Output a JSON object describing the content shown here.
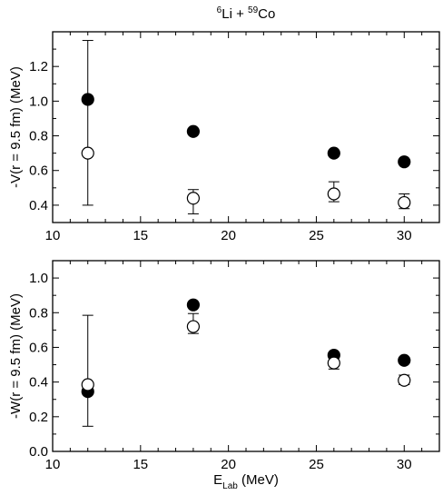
{
  "chart_data": [
    {
      "type": "scatter",
      "title": {
        "pre": "6",
        "a": "Li + ",
        "sup": "59",
        "b": "Co"
      },
      "ylabel": "-V(r = 9.5 fm) (MeV)",
      "xlabel": "",
      "xlim": [
        10,
        32
      ],
      "ylim": [
        0.3,
        1.4
      ],
      "xticks": [
        10,
        15,
        20,
        25,
        30
      ],
      "yticks": [
        0.4,
        0.6,
        0.8,
        1.0,
        1.2
      ],
      "xtick_labels": [
        "10",
        "15",
        "20",
        "25",
        "30"
      ],
      "ytick_labels": [
        "0.4",
        "0.6",
        "0.8",
        "1.0",
        "1.2"
      ],
      "series": [
        {
          "marker": "filled-circle",
          "x": [
            12,
            18,
            26,
            30
          ],
          "y": [
            1.01,
            0.825,
            0.7,
            0.65
          ],
          "err": [
            null,
            null,
            null,
            null
          ]
        },
        {
          "marker": "open-circle",
          "x": [
            12,
            18,
            26,
            30
          ],
          "y": [
            0.7,
            0.44,
            0.465,
            0.415
          ],
          "err": [
            [
              0.4,
              1.35
            ],
            [
              0.35,
              0.49
            ],
            [
              0.42,
              0.535
            ],
            [
              0.38,
              0.465
            ]
          ]
        }
      ]
    },
    {
      "type": "scatter",
      "ylabel": "-W(r = 9.5 fm) (MeV)",
      "xlabel": {
        "pre": "E",
        "sub": "Lab",
        "post": " (MeV)"
      },
      "xlim": [
        10,
        32
      ],
      "ylim": [
        0.0,
        1.1
      ],
      "xticks": [
        10,
        15,
        20,
        25,
        30
      ],
      "yticks": [
        0.0,
        0.2,
        0.4,
        0.6,
        0.8,
        1.0
      ],
      "xtick_labels": [
        "10",
        "15",
        "20",
        "25",
        "30"
      ],
      "ytick_labels": [
        "0.0",
        "0.2",
        "0.4",
        "0.6",
        "0.8",
        "1.0"
      ],
      "series": [
        {
          "marker": "filled-circle",
          "x": [
            12,
            18,
            26,
            30
          ],
          "y": [
            0.345,
            0.845,
            0.555,
            0.525
          ],
          "err": [
            null,
            null,
            null,
            null
          ]
        },
        {
          "marker": "open-circle",
          "x": [
            12,
            18,
            26,
            30
          ],
          "y": [
            0.385,
            0.72,
            0.51,
            0.41
          ],
          "err": [
            [
              0.145,
              0.785
            ],
            [
              0.68,
              0.795
            ],
            [
              0.475,
              0.54
            ],
            [
              0.385,
              0.44
            ]
          ]
        }
      ]
    }
  ]
}
